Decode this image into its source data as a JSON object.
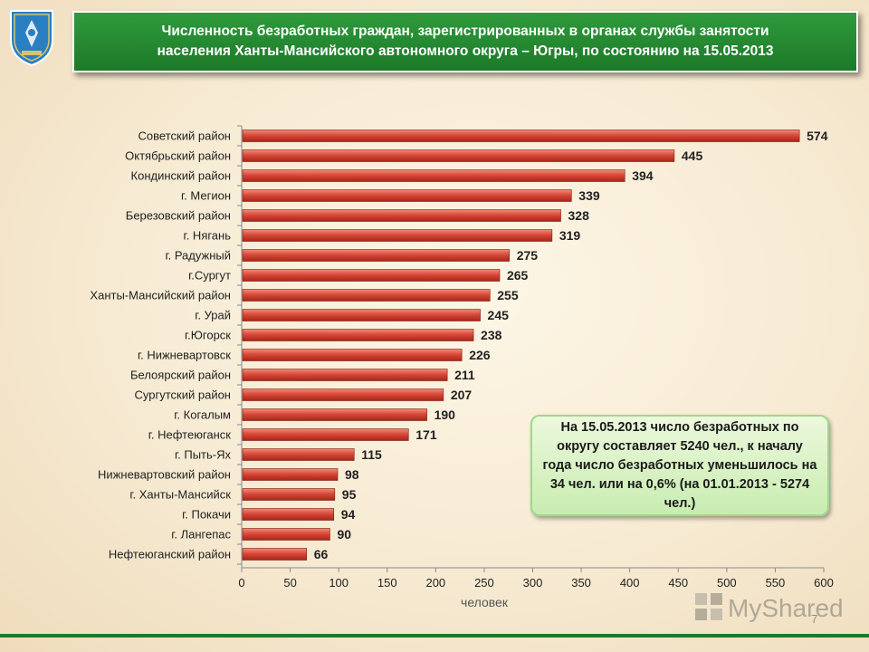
{
  "header": {
    "title_line1": "Численность безработных граждан, зарегистрированных  в органах службы занятости",
    "title_line2": "населения Ханты-Мансийского  автономного  округа – Югры, по состоянию на 15.05.2013"
  },
  "colors": {
    "title_bg": "#1c7a28",
    "bar": "#c0392b",
    "info_bg": "#d9f2c8"
  },
  "chart_data": {
    "type": "bar",
    "orientation": "horizontal",
    "title": "",
    "xlabel": "человек",
    "ylabel": "",
    "xlim": [
      0,
      600
    ],
    "xticks": [
      0,
      50,
      100,
      150,
      200,
      250,
      300,
      350,
      400,
      450,
      500,
      550,
      600
    ],
    "grid": false,
    "categories": [
      "Советский район",
      "Октябрьский район",
      "Кондинский район",
      "г. Мегион",
      "Березовский район",
      "г. Нягань",
      "г. Радужный",
      "г.Сургут",
      "Ханты-Мансийский район",
      "г. Урай",
      "г.Югорск",
      "г. Нижневартовск",
      "Белоярский район",
      "Сургутский район",
      "г. Когалым",
      "г. Нефтеюганск",
      "г. Пыть-Ях",
      "Нижневартовский район",
      "г. Ханты-Мансийск",
      "г. Покачи",
      "г. Лангепас",
      "Нефтеюганский район"
    ],
    "values": [
      574,
      445,
      394,
      339,
      328,
      319,
      275,
      265,
      255,
      245,
      238,
      226,
      211,
      207,
      190,
      171,
      115,
      98,
      95,
      94,
      90,
      66
    ]
  },
  "info_box": {
    "text": "На 15.05.2013 число безработных по округу составляет  5240 чел., к началу года число безработных уменьшилось на 34 чел. или на  0,6% (на 01.01.2013 - 5274 чел.)"
  },
  "watermark": {
    "text": "MyShared"
  },
  "page_number": "7"
}
